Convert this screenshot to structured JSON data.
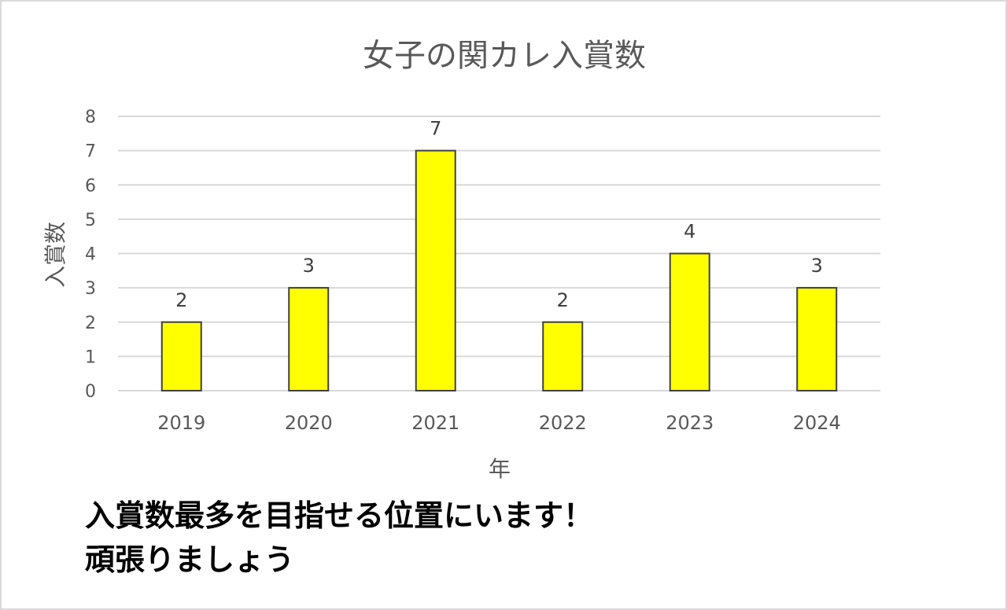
{
  "chart_data": {
    "type": "bar",
    "title": "女子の関カレ入賞数",
    "xlabel": "年",
    "ylabel": "入賞数",
    "categories": [
      "2019",
      "2020",
      "2021",
      "2022",
      "2023",
      "2024"
    ],
    "values": [
      2,
      3,
      7,
      2,
      4,
      3
    ],
    "data_labels": [
      "2",
      "3",
      "7",
      "2",
      "4",
      "3"
    ],
    "yticks": [
      "0",
      "1",
      "2",
      "3",
      "4",
      "5",
      "6",
      "7",
      "8"
    ],
    "ylim": [
      0,
      8
    ],
    "grid": true,
    "legend": "none",
    "colors": {
      "bar_fill": "#ffff00",
      "bar_stroke": "#404040",
      "grid": "#d9d9d9",
      "axis_text": "#595959",
      "label_text": "#404040"
    }
  },
  "caption": {
    "line1": "入賞数最多を目指せる位置にいます！",
    "line2": "頑張りましょう"
  }
}
